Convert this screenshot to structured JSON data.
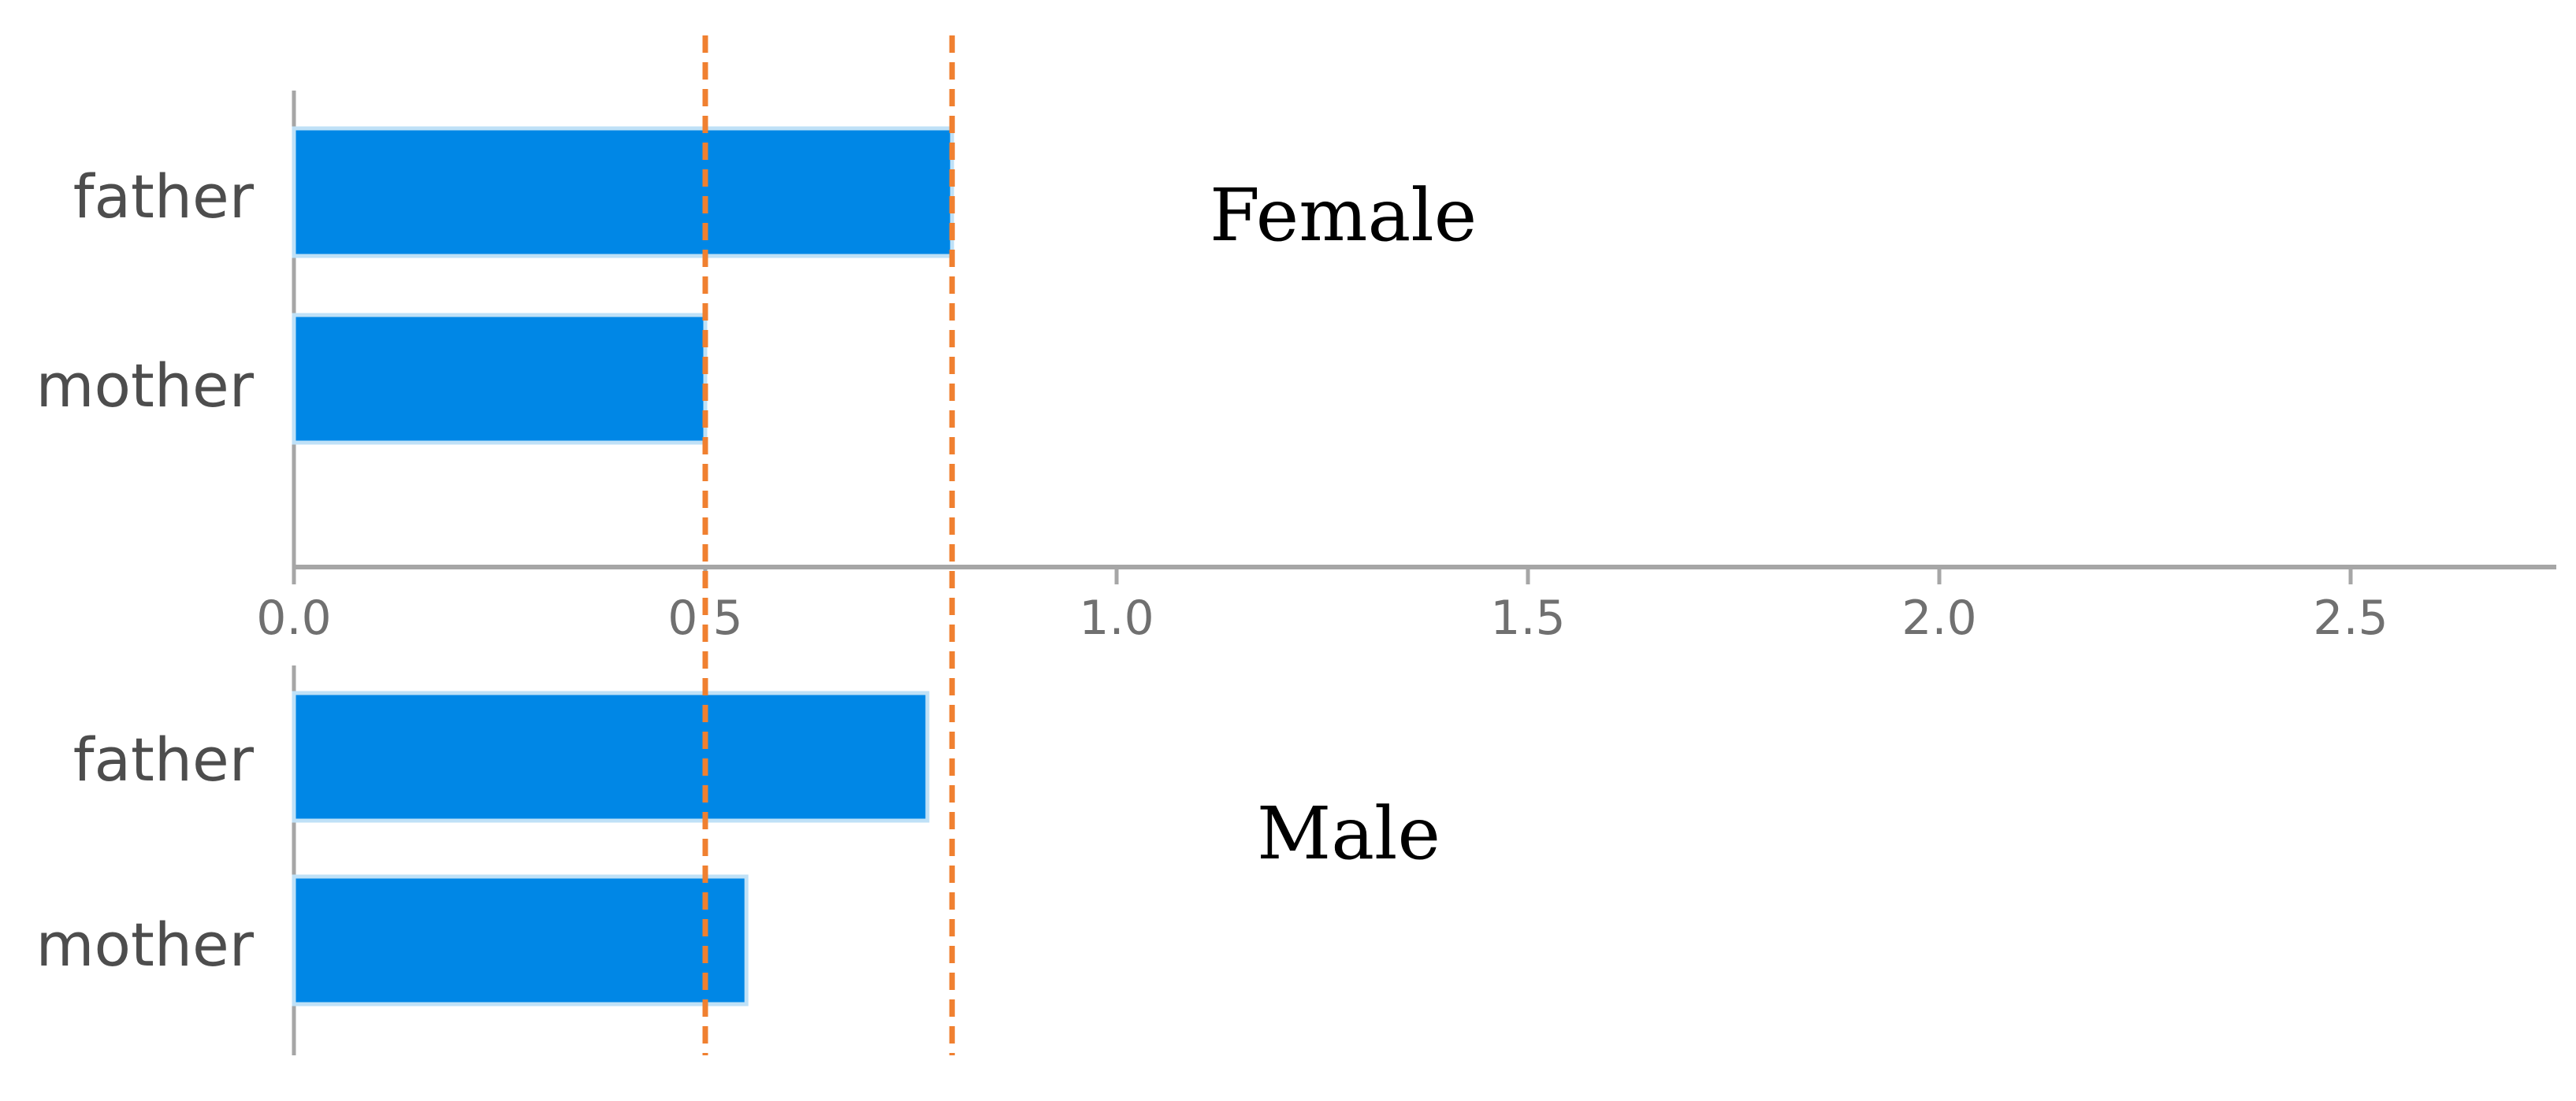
{
  "chart_data": [
    {
      "type": "bar",
      "orientation": "horizontal",
      "panel_label": "Female",
      "categories": [
        "father",
        "mother"
      ],
      "values": [
        0.8,
        0.5
      ],
      "xlim": [
        0,
        2.75
      ],
      "xticks": [
        "0.0",
        "0.5",
        "1.0",
        "1.5",
        "2.0",
        "2.5"
      ],
      "show_xticks": true
    },
    {
      "type": "bar",
      "orientation": "horizontal",
      "panel_label": "Male",
      "categories": [
        "father",
        "mother"
      ],
      "values": [
        0.77,
        0.55
      ],
      "xlim": [
        0,
        2.75
      ],
      "show_xticks": false
    }
  ],
  "reference_lines": [
    0.5,
    0.8
  ],
  "colors": {
    "bar": "#0087e6",
    "bar_edge": "#bfe1f7",
    "reference_line": "#f08030",
    "axis": "#a6a6a6"
  }
}
